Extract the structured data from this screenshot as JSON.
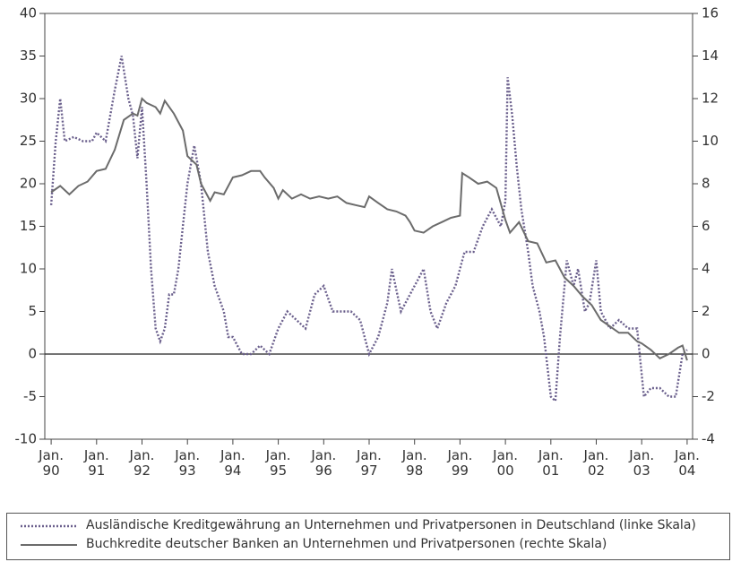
{
  "chart_data": {
    "type": "line",
    "xlim": [
      1989.86,
      2004.12
    ],
    "xticks": [
      {
        "value": 1990,
        "label": "Jan.\n90"
      },
      {
        "value": 1991,
        "label": "Jan.\n91"
      },
      {
        "value": 1992,
        "label": "Jan.\n92"
      },
      {
        "value": 1993,
        "label": "Jan.\n93"
      },
      {
        "value": 1994,
        "label": "Jan.\n94"
      },
      {
        "value": 1995,
        "label": "Jan.\n95"
      },
      {
        "value": 1996,
        "label": "Jan.\n96"
      },
      {
        "value": 1997,
        "label": "Jan.\n97"
      },
      {
        "value": 1998,
        "label": "Jan.\n98"
      },
      {
        "value": 1999,
        "label": "Jan.\n99"
      },
      {
        "value": 2000,
        "label": "Jan.\n00"
      },
      {
        "value": 2001,
        "label": "Jan.\n01"
      },
      {
        "value": 2002,
        "label": "Jan.\n02"
      },
      {
        "value": 2003,
        "label": "Jan.\n03"
      },
      {
        "value": 2004,
        "label": "Jan.\n04"
      }
    ],
    "ylim": [
      -10,
      40
    ],
    "yticks": [
      -10,
      -5,
      0,
      5,
      10,
      15,
      20,
      25,
      30,
      35,
      40
    ],
    "y2lim": [
      -4,
      16
    ],
    "y2ticks": [
      -4,
      -2,
      0,
      2,
      4,
      6,
      8,
      10,
      12,
      14,
      16
    ],
    "series": [
      {
        "name": "Ausländische Kreditgewährung an Unternehmen und Privatpersonen in Deutschland (linke Skala)",
        "color": "#6a5f8c",
        "dashed": true,
        "axis": "y",
        "x": [
          1990.0,
          1990.1,
          1990.2,
          1990.3,
          1990.5,
          1990.7,
          1990.9,
          1991.0,
          1991.2,
          1991.4,
          1991.55,
          1991.7,
          1991.8,
          1991.9,
          1992.0,
          1992.1,
          1992.2,
          1992.3,
          1992.4,
          1992.5,
          1992.6,
          1992.7,
          1992.8,
          1992.9,
          1993.0,
          1993.15,
          1993.3,
          1993.45,
          1993.6,
          1993.8,
          1993.9,
          1994.0,
          1994.2,
          1994.4,
          1994.6,
          1994.8,
          1995.0,
          1995.2,
          1995.4,
          1995.6,
          1995.8,
          1996.0,
          1996.2,
          1996.4,
          1996.6,
          1996.8,
          1997.0,
          1997.2,
          1997.4,
          1997.5,
          1997.7,
          1997.9,
          1998.1,
          1998.2,
          1998.35,
          1998.5,
          1998.7,
          1998.9,
          1999.1,
          1999.3,
          1999.5,
          1999.7,
          1999.9,
          2000.0,
          2000.05,
          2000.15,
          2000.25,
          2000.35,
          2000.5,
          2000.6,
          2000.75,
          2000.85,
          2001.0,
          2001.1,
          2001.2,
          2001.35,
          2001.5,
          2001.6,
          2001.75,
          2001.85,
          2002.0,
          2002.1,
          2002.3,
          2002.5,
          2002.7,
          2002.9,
          2003.05,
          2003.2,
          2003.4,
          2003.6,
          2003.75,
          2003.9,
          2004.0
        ],
        "values": [
          17.5,
          25,
          30,
          25,
          25.5,
          25,
          25,
          26,
          25,
          31,
          35,
          30,
          28,
          23,
          29,
          20,
          10,
          3,
          1.5,
          3,
          7,
          7,
          10,
          15,
          20,
          24.5,
          20,
          12,
          8,
          5,
          2,
          2,
          0,
          0,
          1,
          0,
          3,
          5,
          4,
          3,
          7,
          8,
          5,
          5,
          5,
          4,
          0,
          2,
          6,
          10,
          5,
          7,
          9,
          10,
          5,
          3,
          6,
          8,
          12,
          12,
          15,
          17,
          15,
          18,
          32.5,
          28,
          22,
          17,
          12,
          8,
          5,
          2,
          -5,
          -5.5,
          2,
          11,
          8,
          10,
          5,
          6,
          11,
          5,
          3,
          4,
          3,
          3,
          -5,
          -4,
          -4,
          -5,
          -5,
          0,
          0.5
        ]
      },
      {
        "name": "Buchkredite deutscher Banken an Unternehmen und Privatpersonen (rechte Skala)",
        "color": "#6b6b6b",
        "dashed": false,
        "axis": "y2",
        "x": [
          1990.0,
          1990.2,
          1990.4,
          1990.6,
          1990.8,
          1991.0,
          1991.2,
          1991.4,
          1991.6,
          1991.8,
          1991.9,
          1992.0,
          1992.1,
          1992.3,
          1992.4,
          1992.5,
          1992.7,
          1992.9,
          1993.0,
          1993.2,
          1993.3,
          1993.5,
          1993.6,
          1993.8,
          1994.0,
          1994.2,
          1994.4,
          1994.6,
          1994.7,
          1994.9,
          1995.0,
          1995.1,
          1995.3,
          1995.5,
          1995.7,
          1995.9,
          1996.1,
          1996.3,
          1996.5,
          1996.7,
          1996.9,
          1997.0,
          1997.2,
          1997.4,
          1997.6,
          1997.8,
          1997.9,
          1998.0,
          1998.2,
          1998.4,
          1998.6,
          1998.8,
          1999.0,
          1999.05,
          1999.2,
          1999.4,
          1999.6,
          1999.8,
          2000.0,
          2000.1,
          2000.3,
          2000.5,
          2000.7,
          2000.9,
          2001.1,
          2001.3,
          2001.5,
          2001.7,
          2001.9,
          2002.1,
          2002.3,
          2002.5,
          2002.7,
          2002.9,
          2003.0,
          2003.2,
          2003.4,
          2003.6,
          2003.8,
          2003.9,
          2004.0
        ],
        "values": [
          7.6,
          7.9,
          7.5,
          7.9,
          8.1,
          8.6,
          8.7,
          9.6,
          11.0,
          11.3,
          11.2,
          12.0,
          11.8,
          11.6,
          11.3,
          11.9,
          11.3,
          10.5,
          9.3,
          8.9,
          8.0,
          7.2,
          7.6,
          7.5,
          8.3,
          8.4,
          8.6,
          8.6,
          8.3,
          7.8,
          7.3,
          7.7,
          7.3,
          7.5,
          7.3,
          7.4,
          7.3,
          7.4,
          7.1,
          7.0,
          6.9,
          7.4,
          7.1,
          6.8,
          6.7,
          6.5,
          6.2,
          5.8,
          5.7,
          6.0,
          6.2,
          6.4,
          6.5,
          8.5,
          8.3,
          8.0,
          8.1,
          7.8,
          6.3,
          5.7,
          6.2,
          5.3,
          5.2,
          4.3,
          4.4,
          3.6,
          3.2,
          2.7,
          2.3,
          1.6,
          1.3,
          1.0,
          1.0,
          0.6,
          0.5,
          0.2,
          -0.2,
          0.0,
          0.3,
          0.4,
          -0.3
        ]
      }
    ]
  }
}
